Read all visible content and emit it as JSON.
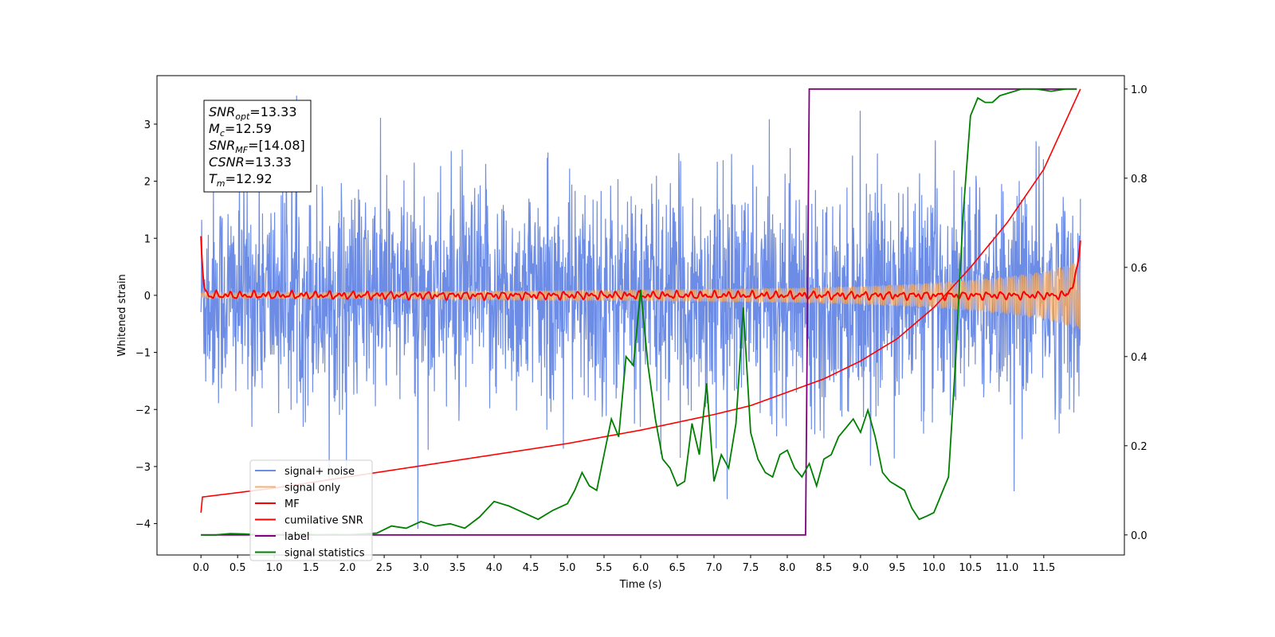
{
  "chart_data": {
    "type": "line",
    "title": "",
    "xlabel": "Time (s)",
    "ylabel": "Whitened strain",
    "xlim": [
      -0.6,
      12.6
    ],
    "ylim": [
      -4.55,
      3.85
    ],
    "y2lim": [
      -0.045,
      1.03
    ],
    "x_ticks": [
      "0.0",
      "0.5",
      "1.0",
      "1.5",
      "2.0",
      "2.5",
      "3.0",
      "3.5",
      "4.0",
      "4.5",
      "5.0",
      "5.5",
      "6.0",
      "6.5",
      "7.0",
      "7.5",
      "8.0",
      "8.5",
      "9.0",
      "9.5",
      "10.0",
      "10.5",
      "11.0",
      "11.5"
    ],
    "y_ticks": [
      "3",
      "2",
      "1",
      "0",
      "−1",
      "−2",
      "−3",
      "−4"
    ],
    "y2_ticks": [
      "1.0",
      "0.8",
      "0.6",
      "0.4",
      "0.2",
      "0.0"
    ],
    "grid": false,
    "legend_position": "lower-left",
    "annotation": [
      {
        "sym": "SNR",
        "sub": "opt",
        "value": "=13.33"
      },
      {
        "sym": "M",
        "sub": "c",
        "value": "=12.59"
      },
      {
        "sym": "SNR",
        "sub": "MF",
        "value": "=[14.08]"
      },
      {
        "sym": "CSNR",
        "sub": "",
        "value": "=13.33"
      },
      {
        "sym": "T",
        "sub": "m",
        "value": "=12.92"
      }
    ],
    "series": [
      {
        "name": "signal+ noise",
        "axis": "left",
        "color": "#6c8ce6",
        "description": "noisy strain oscillating between roughly -2.5 and 2.5 with spikes up to 3.5 and down to -4.1",
        "x_range": [
          0,
          12
        ],
        "envelope": [
          -4.1,
          3.5
        ]
      },
      {
        "name": "signal only",
        "axis": "left",
        "color": "#f5b173",
        "description": "chirp whose amplitude grows from ~0 to ~0.6 by t=12",
        "x": [
          0,
          2,
          4,
          6,
          8,
          9,
          10,
          10.5,
          11,
          11.5,
          12
        ],
        "amplitude": [
          0.05,
          0.06,
          0.08,
          0.1,
          0.13,
          0.16,
          0.22,
          0.27,
          0.33,
          0.42,
          0.6
        ]
      },
      {
        "name": "MF",
        "axis": "left",
        "color": "#ff0000",
        "description": "matched filter output near 0, starting at 1.0 and ending at 1.0",
        "x": [
          0,
          0.05,
          0.1,
          12,
          12.0
        ],
        "y": [
          1.0,
          0.3,
          0.05,
          0.4,
          1.0
        ]
      },
      {
        "name": "cumilative SNR",
        "axis": "right",
        "color": "#ff0000",
        "x": [
          0,
          0.02,
          1,
          2,
          3,
          4,
          5,
          6,
          7,
          7.5,
          8,
          8.5,
          9,
          9.5,
          10,
          10.5,
          11,
          11.5,
          12
        ],
        "y": [
          0.05,
          0.085,
          0.105,
          0.13,
          0.155,
          0.18,
          0.205,
          0.235,
          0.27,
          0.29,
          0.32,
          0.35,
          0.39,
          0.44,
          0.51,
          0.6,
          0.7,
          0.82,
          1.0
        ]
      },
      {
        "name": "label",
        "axis": "right",
        "color": "#800080",
        "x": [
          0,
          8.25,
          8.3,
          11.95
        ],
        "y": [
          0,
          0,
          1,
          1
        ]
      },
      {
        "name": "signal statistics",
        "axis": "right",
        "color": "#008000",
        "x": [
          0,
          0.2,
          0.4,
          0.6,
          0.8,
          1.0,
          1.2,
          1.4,
          1.6,
          1.8,
          2.0,
          2.2,
          2.4,
          2.6,
          2.8,
          3.0,
          3.2,
          3.4,
          3.6,
          3.8,
          4.0,
          4.2,
          4.4,
          4.6,
          4.8,
          5.0,
          5.1,
          5.2,
          5.3,
          5.4,
          5.5,
          5.6,
          5.7,
          5.8,
          5.9,
          6.0,
          6.1,
          6.2,
          6.3,
          6.4,
          6.5,
          6.6,
          6.7,
          6.8,
          6.9,
          7.0,
          7.1,
          7.2,
          7.3,
          7.4,
          7.5,
          7.6,
          7.7,
          7.8,
          7.9,
          8.0,
          8.1,
          8.2,
          8.3,
          8.4,
          8.5,
          8.6,
          8.7,
          8.8,
          8.9,
          9.0,
          9.1,
          9.2,
          9.3,
          9.4,
          9.5,
          9.6,
          9.7,
          9.8,
          9.9,
          10.0,
          10.1,
          10.2,
          10.3,
          10.4,
          10.5,
          10.6,
          10.7,
          10.8,
          10.9,
          11.0,
          11.2,
          11.4,
          11.6,
          11.8,
          11.95
        ],
        "y": [
          0.0,
          0.0,
          0.003,
          0.002,
          0.0,
          0.001,
          0.0,
          0.002,
          0.0,
          0.001,
          0.0,
          0.002,
          0.004,
          0.02,
          0.015,
          0.03,
          0.02,
          0.025,
          0.015,
          0.04,
          0.075,
          0.065,
          0.05,
          0.035,
          0.055,
          0.07,
          0.1,
          0.14,
          0.11,
          0.1,
          0.18,
          0.26,
          0.22,
          0.4,
          0.38,
          0.55,
          0.38,
          0.26,
          0.17,
          0.15,
          0.11,
          0.12,
          0.25,
          0.18,
          0.34,
          0.12,
          0.18,
          0.15,
          0.25,
          0.51,
          0.23,
          0.17,
          0.14,
          0.13,
          0.18,
          0.19,
          0.15,
          0.13,
          0.16,
          0.11,
          0.17,
          0.18,
          0.22,
          0.24,
          0.26,
          0.23,
          0.28,
          0.22,
          0.14,
          0.12,
          0.11,
          0.1,
          0.06,
          0.035,
          0.042,
          0.05,
          0.09,
          0.13,
          0.4,
          0.72,
          0.94,
          0.98,
          0.97,
          0.97,
          0.985,
          0.99,
          1.0,
          1.0,
          0.995,
          1.0,
          1.0
        ]
      }
    ]
  }
}
